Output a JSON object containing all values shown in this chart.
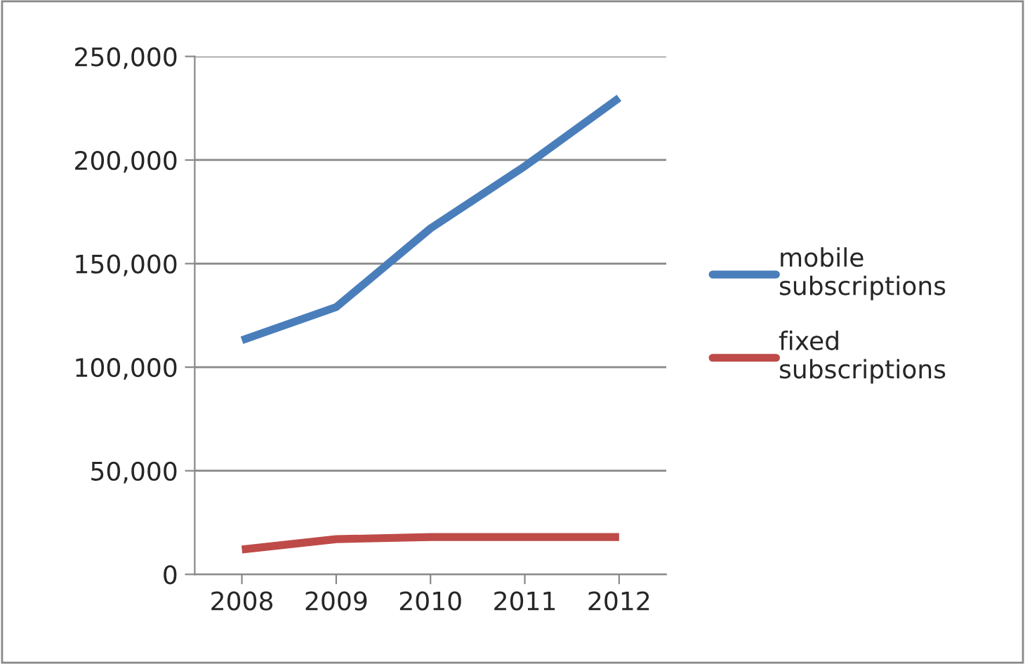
{
  "chart_data": {
    "type": "line",
    "categories": [
      "2008",
      "2009",
      "2010",
      "2011",
      "2012"
    ],
    "series": [
      {
        "name": "mobile subscriptions",
        "color": "#4a7ebb",
        "values": [
          113000,
          129000,
          167000,
          197000,
          230000
        ]
      },
      {
        "name": "fixed subscriptions",
        "color": "#be4b48",
        "values": [
          12000,
          17000,
          18000,
          18000,
          18000
        ]
      }
    ],
    "ylim": [
      0,
      250000
    ],
    "yticks": [
      {
        "value": 0,
        "label": "0"
      },
      {
        "value": 50000,
        "label": "50,000"
      },
      {
        "value": 100000,
        "label": "100,000"
      },
      {
        "value": 150000,
        "label": "150,000"
      },
      {
        "value": 200000,
        "label": "200,000"
      },
      {
        "value": 250000,
        "label": "250,000"
      }
    ],
    "grid": "y",
    "legend": "right",
    "marker": "none",
    "line_style": "solid"
  }
}
